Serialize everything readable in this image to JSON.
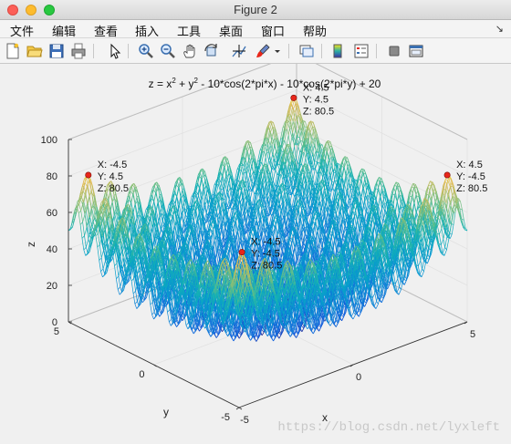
{
  "window": {
    "title": "Figure 2"
  },
  "menu": {
    "items": [
      "文件",
      "编辑",
      "查看",
      "插入",
      "工具",
      "桌面",
      "窗口",
      "帮助"
    ],
    "overflow_icon": "chevron-right-icon"
  },
  "toolbar": {
    "buttons": [
      "new-figure-icon",
      "open-file-icon",
      "save-icon",
      "print-icon",
      "pointer-icon",
      "zoom-in-icon",
      "zoom-out-icon",
      "pan-hand-icon",
      "rotate-3d-icon",
      "data-cursor-icon",
      "brush-icon",
      "link-plot-icon",
      "colorbar-icon",
      "legend-icon",
      "hide-plot-tools-icon",
      "show-plot-tools-icon"
    ]
  },
  "chart_data": {
    "type": "surface-mesh",
    "title": "z = x² + y² - 10*cos(2*pi*x) - 10*cos(2*pi*y) + 20",
    "title_parts": {
      "lhs": "z = ",
      "x": "x",
      "x_exp": "2",
      "mid": " + y",
      "y_exp": "2",
      "rest": " - 10*cos(2*pi*x) - 10*cos(2*pi*y) + 20"
    },
    "xlabel": "x",
    "ylabel": "y",
    "zlabel": "z",
    "xlim": [
      -5,
      5
    ],
    "ylim": [
      -5,
      5
    ],
    "zlim": [
      0,
      100
    ],
    "xticks": [
      "-5",
      "0",
      "5"
    ],
    "yticks": [
      "-5",
      "0",
      "5"
    ],
    "zticks": [
      "0",
      "20",
      "40",
      "60",
      "80",
      "100"
    ],
    "grid": true,
    "colormap": "parula",
    "datatips": [
      {
        "x": "4.5",
        "y": "4.5",
        "z": "80.5",
        "lines": [
          "X: 4.5",
          "Y: 4.5",
          "Z: 80.5"
        ]
      },
      {
        "x": "-4.5",
        "y": "4.5",
        "z": "80.5",
        "lines": [
          "X: -4.5",
          "Y: 4.5",
          "Z: 80.5"
        ]
      },
      {
        "x": "4.5",
        "y": "-4.5",
        "z": "80.5",
        "lines": [
          "X: 4.5",
          "Y: -4.5",
          "Z: 80.5"
        ]
      },
      {
        "x": "-4.5",
        "y": "-4.5",
        "z": "80.5",
        "lines": [
          "X: -4.5",
          "Y: -4.5",
          "Z: 80.5"
        ]
      }
    ],
    "marker_color": "#e8271b"
  },
  "watermark": "https://blog.csdn.net/lyxleft"
}
